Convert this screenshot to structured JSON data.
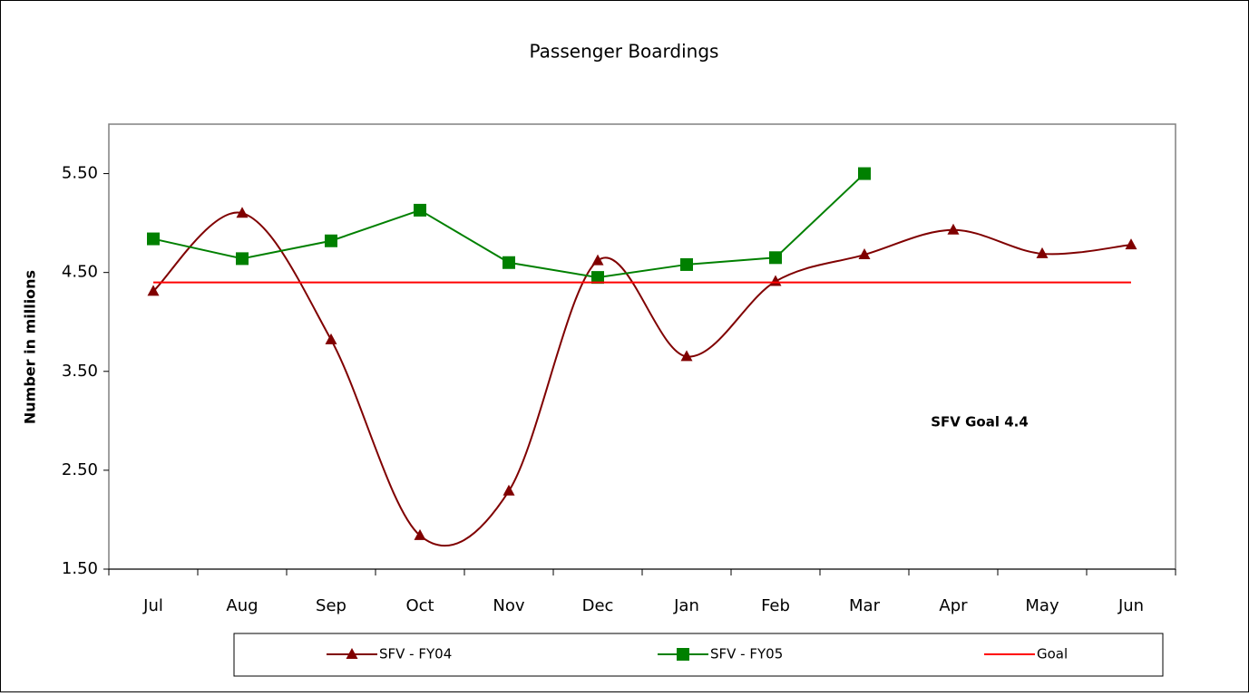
{
  "chart_data": {
    "type": "line",
    "title": "Passenger Boardings",
    "y_label": "Number in millions",
    "annotation": "SFV Goal 4.4",
    "categories": [
      "Jul",
      "Aug",
      "Sep",
      "Oct",
      "Nov",
      "Dec",
      "Jan",
      "Feb",
      "Mar",
      "Apr",
      "May",
      "Jun"
    ],
    "series": [
      {
        "name": "SFV - FY04",
        "color": "#800000",
        "marker": "triangle",
        "smooth": true,
        "values": [
          4.31,
          5.1,
          3.82,
          1.84,
          2.29,
          4.62,
          3.65,
          4.41,
          4.68,
          4.93,
          4.69,
          4.78
        ]
      },
      {
        "name": "SFV - FY05",
        "color": "#008000",
        "marker": "square",
        "smooth": false,
        "values": [
          4.84,
          4.64,
          4.82,
          5.13,
          4.6,
          4.45,
          4.58,
          4.65,
          5.5,
          null,
          null,
          null
        ]
      },
      {
        "name": "Goal",
        "color": "#ff0000",
        "marker": "none",
        "smooth": false,
        "values": [
          4.4,
          4.4,
          4.4,
          4.4,
          4.4,
          4.4,
          4.4,
          4.4,
          4.4,
          4.4,
          4.4,
          4.4
        ]
      }
    ],
    "ylim": [
      1.5,
      6.0
    ],
    "yticks": [
      {
        "value": 1.5,
        "label": "1.50"
      },
      {
        "value": 2.5,
        "label": "2.50"
      },
      {
        "value": 3.5,
        "label": "3.50"
      },
      {
        "value": 4.5,
        "label": "4.50"
      },
      {
        "value": 5.5,
        "label": "5.50"
      }
    ],
    "grid": false,
    "legend": "bottom"
  }
}
